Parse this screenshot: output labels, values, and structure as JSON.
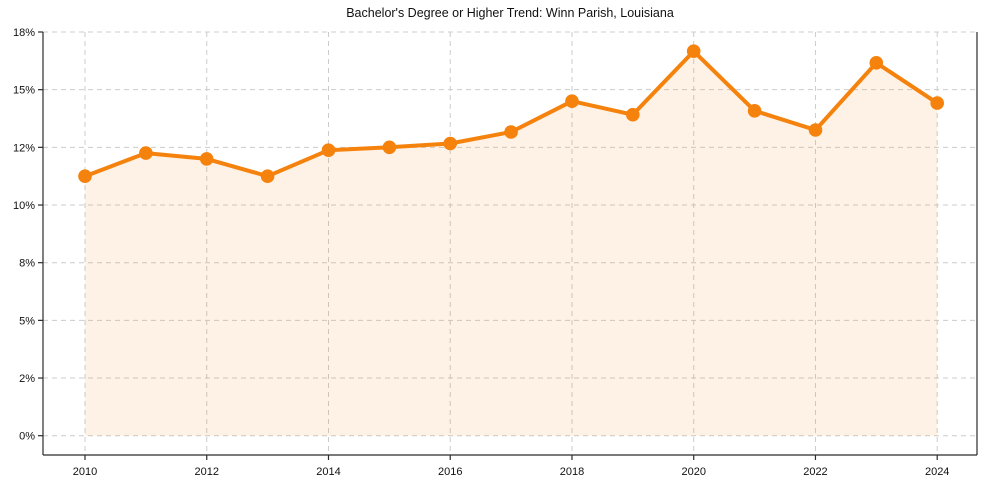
{
  "chart_data": {
    "type": "line",
    "title": "Bachelor's Degree or Higher Trend: Winn Parish, Louisiana",
    "x": [
      2010,
      2011,
      2012,
      2013,
      2014,
      2015,
      2016,
      2017,
      2018,
      2019,
      2020,
      2021,
      2022,
      2023,
      2024
    ],
    "series": [
      {
        "name": "Bachelor's Degree or Higher",
        "values": [
          11.0,
          11.8,
          11.6,
          11.0,
          11.9,
          12.0,
          12.2,
          12.8,
          14.4,
          13.7,
          17.0,
          13.9,
          12.9,
          16.4,
          14.3
        ]
      }
    ],
    "x_tick_labels": [
      "2010",
      "2012",
      "2014",
      "2016",
      "2018",
      "2020",
      "2022",
      "2024"
    ],
    "y_tick_labels": [
      "0%",
      "2%",
      "5%",
      "8%",
      "10%",
      "12%",
      "15%",
      "18%"
    ],
    "y_tick_values": [
      0,
      2,
      5,
      8,
      10,
      12,
      15,
      18
    ],
    "ylim": [
      0,
      18
    ],
    "grid": "dashed",
    "legend": "none",
    "marker": "circle",
    "colors": {
      "line": "#f5820d",
      "marker": "#f5820d",
      "fill": "#f5820d",
      "grid": "#cccccc",
      "axis": "#2b2b2b",
      "text": "#111111",
      "background": "#ffffff"
    },
    "fill_opacity": 0.1
  }
}
